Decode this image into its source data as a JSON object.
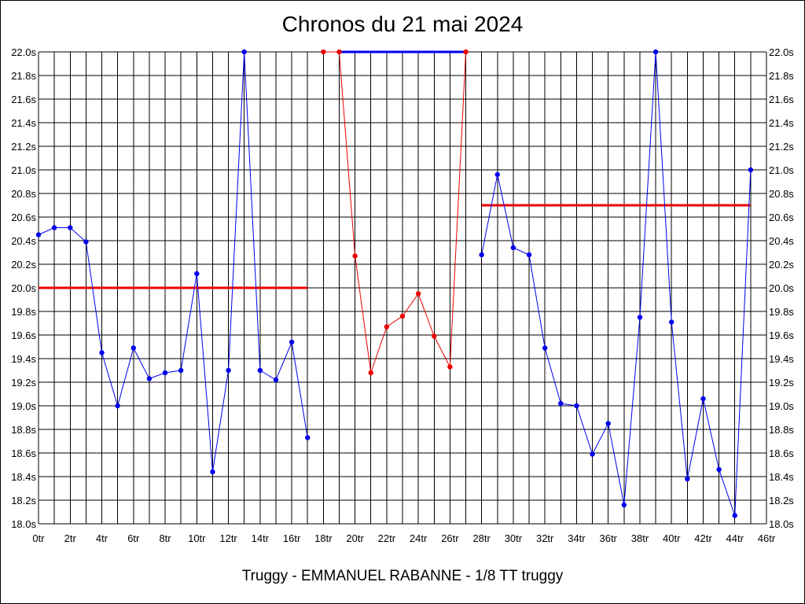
{
  "chart_data": {
    "type": "line",
    "title": "Chronos du 21 mai 2024",
    "footer": "Truggy - EMMANUEL RABANNE - 1/8 TT truggy",
    "xlabel": "",
    "ylabel": "",
    "xlim": [
      0,
      46
    ],
    "ylim": [
      18.0,
      22.0
    ],
    "grid": true,
    "x_tick_labels": [
      "0tr",
      "2tr",
      "4tr",
      "6tr",
      "8tr",
      "10tr",
      "12tr",
      "14tr",
      "16tr",
      "18tr",
      "20tr",
      "22tr",
      "24tr",
      "26tr",
      "28tr",
      "30tr",
      "32tr",
      "34tr",
      "36tr",
      "38tr",
      "40tr",
      "42tr",
      "44tr",
      "46tr"
    ],
    "y_tick_labels": [
      "18.0s",
      "18.2s",
      "18.4s",
      "18.6s",
      "18.8s",
      "19.0s",
      "19.2s",
      "19.4s",
      "19.6s",
      "19.8s",
      "20.0s",
      "20.2s",
      "20.4s",
      "20.6s",
      "20.8s",
      "21.0s",
      "21.2s",
      "21.4s",
      "21.6s",
      "21.8s",
      "22.0s"
    ],
    "colors": {
      "series_a": "#0000ee",
      "series_b": "#ee0000",
      "average": "#ee0000",
      "grid": "#000000"
    },
    "series": [
      {
        "color": "#0000ee",
        "x": [
          0,
          1,
          2,
          3,
          4,
          5,
          6,
          7,
          8,
          9,
          10,
          11,
          12,
          13,
          14,
          15,
          16,
          17
        ],
        "y": [
          20.45,
          20.51,
          20.51,
          20.39,
          19.45,
          19.0,
          19.49,
          19.23,
          19.28,
          19.3,
          20.12,
          18.44,
          19.3,
          22.0,
          19.3,
          19.22,
          19.54,
          18.73
        ]
      },
      {
        "color": "#ee0000",
        "x": [
          18,
          19,
          20,
          21,
          22,
          23,
          24,
          25,
          26,
          27
        ],
        "y": [
          22.0,
          22.0,
          20.27,
          19.28,
          19.67,
          19.76,
          19.95,
          19.59,
          19.33,
          22.0
        ]
      },
      {
        "color": "#0000ee",
        "x": [
          28,
          29,
          30,
          31,
          32,
          33,
          34,
          35,
          36,
          37,
          38,
          39,
          40,
          41,
          42,
          43,
          44,
          45
        ],
        "y": [
          20.28,
          20.96,
          20.34,
          20.28,
          19.49,
          19.02,
          19.0,
          18.59,
          18.85,
          18.16,
          19.75,
          22.0,
          19.71,
          18.38,
          19.06,
          18.46,
          18.07,
          21.0
        ]
      }
    ],
    "reference_lines": [
      {
        "x0": 0,
        "x1": 17,
        "y": 20.0,
        "color": "#ee0000"
      },
      {
        "x0": 19,
        "x1": 27,
        "y": 22.0,
        "color": "#0000ee"
      },
      {
        "x0": 28,
        "x1": 45,
        "y": 20.7,
        "color": "#ee0000"
      }
    ]
  }
}
